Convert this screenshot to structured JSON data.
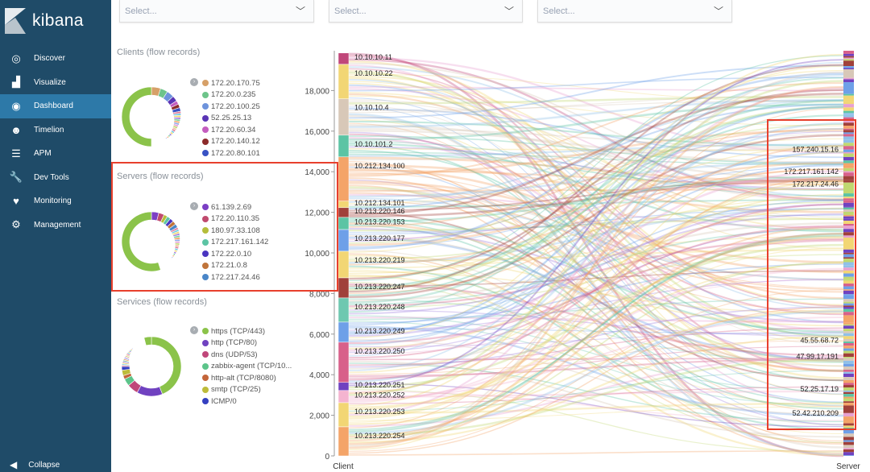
{
  "app": {
    "name": "kibana"
  },
  "sidebar": {
    "items": [
      {
        "label": "Discover",
        "icon": "compass-icon"
      },
      {
        "label": "Visualize",
        "icon": "bar-chart-icon"
      },
      {
        "label": "Dashboard",
        "icon": "dashboard-icon",
        "active": true
      },
      {
        "label": "Timelion",
        "icon": "timelion-icon"
      },
      {
        "label": "APM",
        "icon": "apm-icon"
      },
      {
        "label": "Dev Tools",
        "icon": "wrench-icon"
      },
      {
        "label": "Monitoring",
        "icon": "heartbeat-icon"
      },
      {
        "label": "Management",
        "icon": "gear-icon"
      }
    ],
    "collapse": "Collapse"
  },
  "filters": [
    {
      "placeholder": "Select..."
    },
    {
      "placeholder": "Select..."
    },
    {
      "placeholder": "Select..."
    }
  ],
  "panels": {
    "clients": {
      "title": "Clients (flow records)",
      "legend": [
        {
          "label": "172.20.170.75",
          "color": "#d6a068"
        },
        {
          "label": "172.20.0.235",
          "color": "#6dc48a"
        },
        {
          "label": "172.20.100.25",
          "color": "#6e93dc"
        },
        {
          "label": "52.25.25.13",
          "color": "#5a35b5"
        },
        {
          "label": "172.20.60.34",
          "color": "#c45dbf"
        },
        {
          "label": "172.20.140.12",
          "color": "#8c2b2b"
        },
        {
          "label": "172.20.80.101",
          "color": "#3852c4"
        }
      ],
      "slices": [
        0.05,
        0.04,
        0.04,
        0.03,
        0.02,
        0.02,
        0.02
      ],
      "main": 0.5,
      "main_color": "#8bc34a"
    },
    "servers": {
      "title": "Servers (flow records)",
      "legend": [
        {
          "label": "61.139.2.69",
          "color": "#7b3fc4"
        },
        {
          "label": "172.20.110.35",
          "color": "#c04a6e"
        },
        {
          "label": "180.97.33.108",
          "color": "#b5bd3a"
        },
        {
          "label": "172.217.161.142",
          "color": "#5cc4a4"
        },
        {
          "label": "172.22.0.10",
          "color": "#4a35c0"
        },
        {
          "label": "172.21.0.8",
          "color": "#c0743a"
        },
        {
          "label": "172.217.24.46",
          "color": "#4a86c8"
        }
      ],
      "slices": [
        0.04,
        0.03,
        0.02,
        0.02,
        0.02,
        0.02,
        0.02
      ],
      "main": 0.55,
      "main_color": "#8bc34a"
    },
    "services": {
      "title": "Services (flow records)",
      "legend": [
        {
          "label": "https (TCP/443)",
          "color": "#8bc34a"
        },
        {
          "label": "http (TCP/80)",
          "color": "#7042c0"
        },
        {
          "label": "dns (UDP/53)",
          "color": "#c0477a"
        },
        {
          "label": "zabbix-agent (TCP/10...",
          "color": "#5cc48a"
        },
        {
          "label": "http-alt (TCP/8080)",
          "color": "#c4653a"
        },
        {
          "label": "smtp (TCP/25)",
          "color": "#bdbb3a"
        },
        {
          "label": "ICMP/0",
          "color": "#3540c0"
        }
      ],
      "slices": [
        0.44,
        0.14,
        0.06,
        0.04,
        0.02,
        0.03,
        0.02
      ],
      "main": 0.04,
      "main_color": "#8bc34a"
    }
  },
  "chart_data": {
    "type": "sankey",
    "yaxis": {
      "ticks": [
        0,
        2000,
        4000,
        6000,
        8000,
        10000,
        12000,
        14000,
        16000,
        18000
      ],
      "labels": [
        "0",
        "2,000",
        "4,000",
        "6,000",
        "8,000",
        "10,000",
        "12,000",
        "14,000",
        "16,000",
        "18,000"
      ],
      "ylim": [
        0,
        19850
      ]
    },
    "xlabels": {
      "left": "Client",
      "right": "Server"
    },
    "left_nodes": [
      {
        "label": "10.10.10.11",
        "value": 560,
        "color": "#c0477a"
      },
      {
        "label": "10.10.10.22",
        "value": 1700,
        "color": "#f2d674"
      },
      {
        "label": "10.10.10.4",
        "value": 1790,
        "color": "#d8c8b8"
      },
      {
        "label": "10.10.101.2",
        "value": 1070,
        "color": "#5cc4a4"
      },
      {
        "label": "10.212.134.100",
        "value": 2180,
        "color": "#f4a468"
      },
      {
        "label": "10.212.134.101",
        "value": 320,
        "color": "#f2d674"
      },
      {
        "label": "10.213.220.146",
        "value": 480,
        "color": "#a0403a"
      },
      {
        "label": "10.213.220.153",
        "value": 600,
        "color": "#5cc4a4"
      },
      {
        "label": "10.213.220.177",
        "value": 1070,
        "color": "#6ea0e8"
      },
      {
        "label": "10.213.220.219",
        "value": 1310,
        "color": "#f2d674"
      },
      {
        "label": "10.213.220.247",
        "value": 990,
        "color": "#a0403a"
      },
      {
        "label": "10.213.220.248",
        "value": 1190,
        "color": "#6ec8b0"
      },
      {
        "label": "10.213.220.249",
        "value": 990,
        "color": "#6ea0e8"
      },
      {
        "label": "10.213.220.250",
        "value": 1980,
        "color": "#d8608a"
      },
      {
        "label": "10.213.220.251",
        "value": 400,
        "color": "#7042c0"
      },
      {
        "label": "10.213.220.252",
        "value": 600,
        "color": "#f4b4d0"
      },
      {
        "label": "10.213.220.253",
        "value": 1190,
        "color": "#f2d674"
      },
      {
        "label": "10.213.220.254",
        "value": 1430,
        "color": "#f4a468"
      }
    ],
    "right_labels": [
      {
        "label": "157.240.15.16",
        "value": 15100
      },
      {
        "label": "172.217.161.142",
        "value": 14000
      },
      {
        "label": "172.217.24.46",
        "value": 13400
      },
      {
        "label": "45.55.68.72",
        "value": 5700
      },
      {
        "label": "47.99.17.191",
        "value": 4900
      },
      {
        "label": "52.25.17.19",
        "value": 3300
      },
      {
        "label": "52.42.210.209",
        "value": 2100
      }
    ]
  },
  "highlight_color": "#e8402d"
}
